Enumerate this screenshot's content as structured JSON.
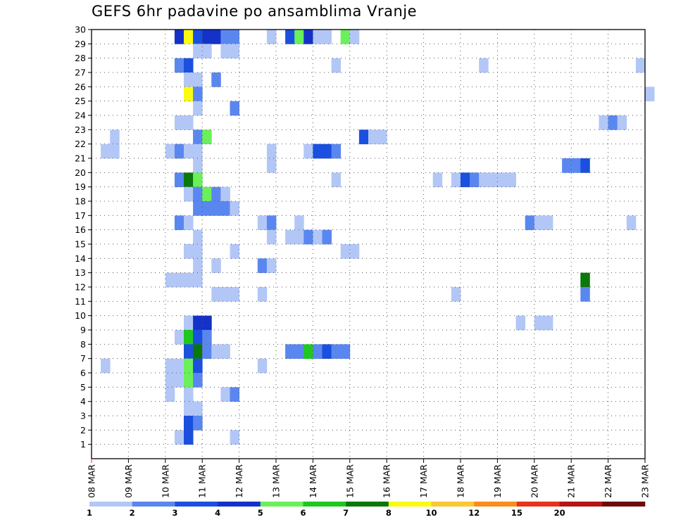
{
  "chart_data": {
    "type": "heatmap",
    "title": "GEFS 6hr padavine po ansamblima Vranje",
    "xlabel": "",
    "ylabel": "",
    "x_tick_labels": [
      "08 MAR",
      "09 MAR",
      "10 MAR",
      "11 MAR",
      "12 MAR",
      "13 MAR",
      "14 MAR",
      "15 MAR",
      "16 MAR",
      "17 MAR",
      "18 MAR",
      "19 MAR",
      "20 MAR",
      "21 MAR",
      "22 MAR",
      "23 MAR"
    ],
    "y_tick_labels": [
      "1",
      "2",
      "3",
      "4",
      "5",
      "6",
      "7",
      "8",
      "9",
      "10",
      "11",
      "12",
      "13",
      "14",
      "15",
      "16",
      "17",
      "18",
      "19",
      "20",
      "21",
      "22",
      "23",
      "24",
      "25",
      "26",
      "27",
      "28",
      "29",
      "30"
    ],
    "x_range": [
      "08 MAR 00h",
      "23 MAR 00h"
    ],
    "time_step_hours": 6,
    "y_range": [
      0,
      30
    ],
    "grid": true,
    "legend_placement": "bottom",
    "legend": {
      "labels": [
        "1",
        "2",
        "3",
        "4",
        "5",
        "6",
        "7",
        "8",
        "10",
        "12",
        "15",
        "20"
      ],
      "colors": [
        "#b3c7f7",
        "#5a87ef",
        "#1a4fe0",
        "#1432c8",
        "#6af05a",
        "#1ec81e",
        "#0a780a",
        "#fafa14",
        "#fac832",
        "#fa8c1e",
        "#e6321e",
        "#b41414",
        "#6e0a0a"
      ]
    },
    "series": [
      {
        "y": 30,
        "cells": [
          [
            9,
            4
          ],
          [
            10,
            8
          ],
          [
            11,
            3
          ],
          [
            12,
            4
          ],
          [
            13,
            4
          ],
          [
            14,
            2
          ],
          [
            15,
            2
          ],
          [
            19,
            1
          ],
          [
            21,
            3
          ],
          [
            22,
            5
          ],
          [
            23,
            4
          ],
          [
            24,
            1
          ],
          [
            25,
            1
          ],
          [
            27,
            5
          ],
          [
            28,
            1
          ]
        ]
      },
      {
        "y": 29,
        "cells": [
          [
            11,
            1
          ],
          [
            12,
            1
          ],
          [
            14,
            1
          ],
          [
            15,
            1
          ]
        ]
      },
      {
        "y": 28,
        "cells": [
          [
            9,
            2
          ],
          [
            10,
            3
          ],
          [
            26,
            1
          ],
          [
            42,
            1
          ],
          [
            59,
            1
          ]
        ]
      },
      {
        "y": 27,
        "cells": [
          [
            10,
            1
          ],
          [
            11,
            1
          ],
          [
            13,
            2
          ]
        ]
      },
      {
        "y": 26,
        "cells": [
          [
            10,
            8
          ],
          [
            11,
            2
          ],
          [
            60,
            1
          ]
        ]
      },
      {
        "y": 25,
        "cells": [
          [
            11,
            1
          ],
          [
            15,
            2
          ]
        ]
      },
      {
        "y": 24,
        "cells": [
          [
            9,
            1
          ],
          [
            10,
            1
          ],
          [
            55,
            1
          ],
          [
            56,
            2
          ],
          [
            57,
            1
          ]
        ]
      },
      {
        "y": 23,
        "cells": [
          [
            2,
            1
          ],
          [
            11,
            2
          ],
          [
            12,
            5
          ],
          [
            29,
            3
          ],
          [
            30,
            1
          ],
          [
            31,
            1
          ]
        ]
      },
      {
        "y": 22,
        "cells": [
          [
            1,
            1
          ],
          [
            2,
            1
          ],
          [
            8,
            1
          ],
          [
            9,
            2
          ],
          [
            10,
            1
          ],
          [
            11,
            1
          ],
          [
            19,
            1
          ],
          [
            23,
            1
          ],
          [
            24,
            3
          ],
          [
            25,
            3
          ],
          [
            26,
            2
          ]
        ]
      },
      {
        "y": 21,
        "cells": [
          [
            11,
            1
          ],
          [
            19,
            1
          ],
          [
            51,
            2
          ],
          [
            52,
            2
          ],
          [
            53,
            3
          ]
        ]
      },
      {
        "y": 20,
        "cells": [
          [
            9,
            2
          ],
          [
            10,
            7
          ],
          [
            11,
            5
          ],
          [
            26,
            1
          ],
          [
            37,
            1
          ],
          [
            39,
            1
          ],
          [
            40,
            3
          ],
          [
            41,
            2
          ],
          [
            42,
            1
          ],
          [
            43,
            1
          ],
          [
            44,
            1
          ],
          [
            45,
            1
          ]
        ]
      },
      {
        "y": 19,
        "cells": [
          [
            10,
            1
          ],
          [
            11,
            2
          ],
          [
            12,
            5
          ],
          [
            13,
            2
          ],
          [
            14,
            1
          ]
        ]
      },
      {
        "y": 18,
        "cells": [
          [
            11,
            2
          ],
          [
            12,
            2
          ],
          [
            13,
            2
          ],
          [
            14,
            2
          ],
          [
            15,
            1
          ]
        ]
      },
      {
        "y": 17,
        "cells": [
          [
            9,
            2
          ],
          [
            10,
            1
          ],
          [
            18,
            1
          ],
          [
            19,
            2
          ],
          [
            22,
            1
          ],
          [
            47,
            2
          ],
          [
            48,
            1
          ],
          [
            49,
            1
          ],
          [
            58,
            1
          ]
        ]
      },
      {
        "y": 16,
        "cells": [
          [
            11,
            1
          ],
          [
            19,
            1
          ],
          [
            21,
            1
          ],
          [
            22,
            1
          ],
          [
            23,
            2
          ],
          [
            24,
            1
          ],
          [
            25,
            2
          ]
        ]
      },
      {
        "y": 15,
        "cells": [
          [
            10,
            1
          ],
          [
            11,
            1
          ],
          [
            15,
            1
          ],
          [
            27,
            1
          ],
          [
            28,
            1
          ]
        ]
      },
      {
        "y": 14,
        "cells": [
          [
            11,
            1
          ],
          [
            13,
            1
          ],
          [
            18,
            2
          ],
          [
            19,
            1
          ]
        ]
      },
      {
        "y": 13,
        "cells": [
          [
            8,
            1
          ],
          [
            9,
            1
          ],
          [
            10,
            1
          ],
          [
            11,
            1
          ],
          [
            53,
            7
          ]
        ]
      },
      {
        "y": 12,
        "cells": [
          [
            13,
            1
          ],
          [
            14,
            1
          ],
          [
            15,
            1
          ],
          [
            18,
            1
          ],
          [
            39,
            1
          ],
          [
            53,
            2
          ]
        ]
      },
      {
        "y": 11,
        "cells": []
      },
      {
        "y": 10,
        "cells": [
          [
            10,
            1
          ],
          [
            11,
            4
          ],
          [
            12,
            4
          ],
          [
            46,
            1
          ],
          [
            48,
            1
          ],
          [
            49,
            1
          ]
        ]
      },
      {
        "y": 9,
        "cells": [
          [
            9,
            1
          ],
          [
            10,
            6
          ],
          [
            11,
            3
          ],
          [
            12,
            2
          ]
        ]
      },
      {
        "y": 8,
        "cells": [
          [
            10,
            3
          ],
          [
            11,
            7
          ],
          [
            12,
            2
          ],
          [
            13,
            1
          ],
          [
            14,
            1
          ],
          [
            21,
            2
          ],
          [
            22,
            2
          ],
          [
            23,
            6
          ],
          [
            24,
            2
          ],
          [
            25,
            3
          ],
          [
            26,
            2
          ],
          [
            27,
            2
          ]
        ]
      },
      {
        "y": 7,
        "cells": [
          [
            1,
            1
          ],
          [
            8,
            1
          ],
          [
            9,
            1
          ],
          [
            10,
            5
          ],
          [
            11,
            3
          ],
          [
            18,
            1
          ]
        ]
      },
      {
        "y": 6,
        "cells": [
          [
            8,
            1
          ],
          [
            9,
            1
          ],
          [
            10,
            5
          ],
          [
            11,
            2
          ]
        ]
      },
      {
        "y": 5,
        "cells": [
          [
            8,
            1
          ],
          [
            10,
            1
          ],
          [
            14,
            1
          ],
          [
            15,
            2
          ]
        ]
      },
      {
        "y": 4,
        "cells": [
          [
            10,
            1
          ],
          [
            11,
            1
          ]
        ]
      },
      {
        "y": 3,
        "cells": [
          [
            10,
            3
          ],
          [
            11,
            2
          ]
        ]
      },
      {
        "y": 2,
        "cells": [
          [
            9,
            1
          ],
          [
            10,
            3
          ],
          [
            15,
            1
          ]
        ]
      },
      {
        "y": 1,
        "cells": []
      }
    ]
  }
}
